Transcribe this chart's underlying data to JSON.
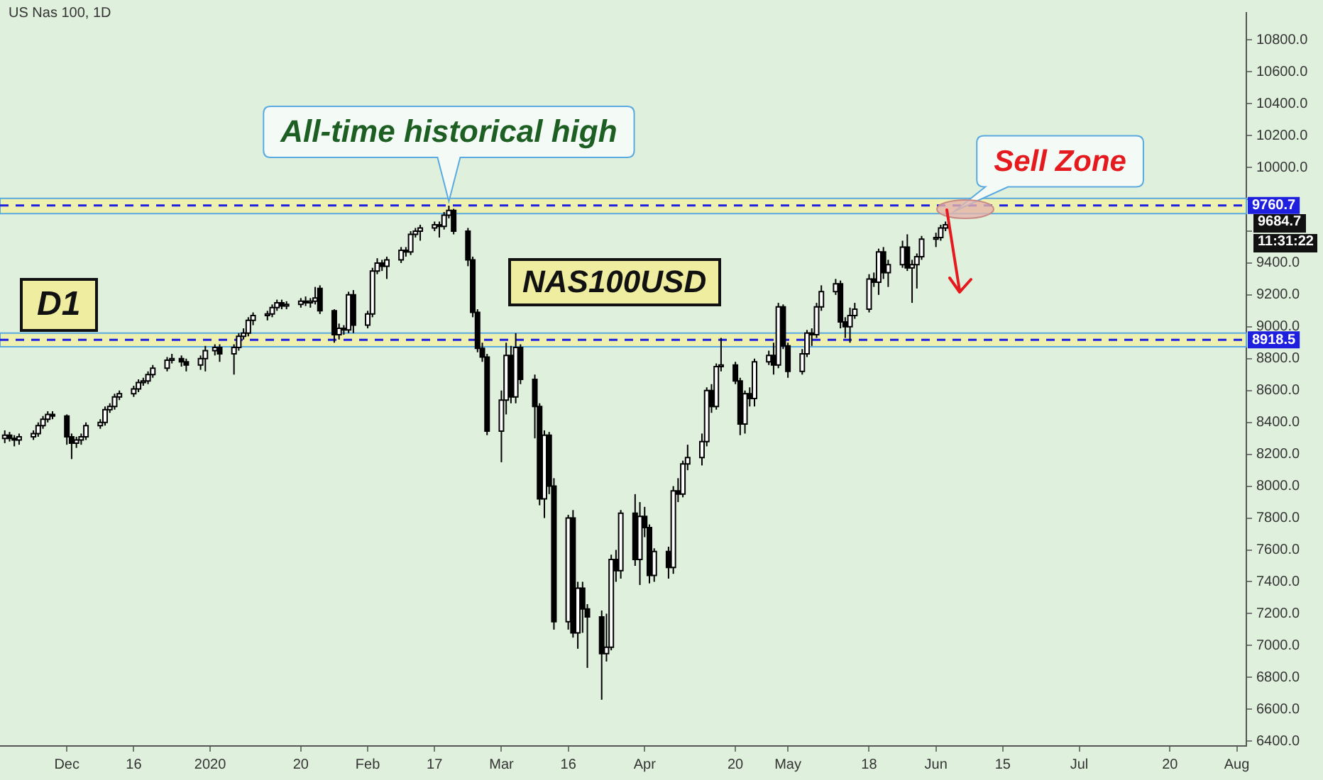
{
  "chart_data": {
    "type": "candlestick",
    "title": "US Nas 100, 1D",
    "x": [
      "2019-11-19",
      "2019-11-20",
      "2019-11-21",
      "2019-11-22",
      "2019-11-25",
      "2019-11-26",
      "2019-11-27",
      "2019-11-28",
      "2019-11-29",
      "2019-12-02",
      "2019-12-03",
      "2019-12-04",
      "2019-12-05",
      "2019-12-06",
      "2019-12-09",
      "2019-12-10",
      "2019-12-11",
      "2019-12-12",
      "2019-12-13",
      "2019-12-16",
      "2019-12-17",
      "2019-12-18",
      "2019-12-19",
      "2019-12-20",
      "2019-12-23",
      "2019-12-24",
      "2019-12-26",
      "2019-12-27",
      "2019-12-30",
      "2019-12-31",
      "2020-01-02",
      "2020-01-03",
      "2020-01-06",
      "2020-01-07",
      "2020-01-08",
      "2020-01-09",
      "2020-01-10",
      "2020-01-13",
      "2020-01-14",
      "2020-01-15",
      "2020-01-16",
      "2020-01-17",
      "2020-01-20",
      "2020-01-21",
      "2020-01-22",
      "2020-01-23",
      "2020-01-24",
      "2020-01-27",
      "2020-01-28",
      "2020-01-29",
      "2020-01-30",
      "2020-01-31",
      "2020-02-03",
      "2020-02-04",
      "2020-02-05",
      "2020-02-06",
      "2020-02-07",
      "2020-02-10",
      "2020-02-11",
      "2020-02-12",
      "2020-02-13",
      "2020-02-14",
      "2020-02-17",
      "2020-02-18",
      "2020-02-19",
      "2020-02-20",
      "2020-02-21",
      "2020-02-24",
      "2020-02-25",
      "2020-02-26",
      "2020-02-27",
      "2020-02-28",
      "2020-03-02",
      "2020-03-03",
      "2020-03-04",
      "2020-03-05",
      "2020-03-06",
      "2020-03-09",
      "2020-03-10",
      "2020-03-11",
      "2020-03-12",
      "2020-03-13",
      "2020-03-16",
      "2020-03-17",
      "2020-03-18",
      "2020-03-19",
      "2020-03-20",
      "2020-03-23",
      "2020-03-24",
      "2020-03-25",
      "2020-03-26",
      "2020-03-27",
      "2020-03-30",
      "2020-03-31",
      "2020-04-01",
      "2020-04-02",
      "2020-04-03",
      "2020-04-06",
      "2020-04-07",
      "2020-04-08",
      "2020-04-09",
      "2020-04-10",
      "2020-04-13",
      "2020-04-14",
      "2020-04-15",
      "2020-04-16",
      "2020-04-17",
      "2020-04-20",
      "2020-04-21",
      "2020-04-22",
      "2020-04-23",
      "2020-04-24",
      "2020-04-27",
      "2020-04-28",
      "2020-04-29",
      "2020-04-30",
      "2020-05-01",
      "2020-05-04",
      "2020-05-05",
      "2020-05-06",
      "2020-05-07",
      "2020-05-08",
      "2020-05-11",
      "2020-05-12",
      "2020-05-13",
      "2020-05-14",
      "2020-05-15",
      "2020-05-18",
      "2020-05-19",
      "2020-05-20",
      "2020-05-21",
      "2020-05-22",
      "2020-05-25",
      "2020-05-26",
      "2020-05-27",
      "2020-05-28",
      "2020-05-29",
      "2020-06-01",
      "2020-06-02",
      "2020-06-03"
    ],
    "ohlc": [
      [
        8300,
        8350,
        8270,
        8320
      ],
      [
        8320,
        8340,
        8280,
        8300
      ],
      [
        8300,
        8320,
        8250,
        8290
      ],
      [
        8290,
        8330,
        8260,
        8310
      ],
      [
        8310,
        8350,
        8290,
        8330
      ],
      [
        8330,
        8400,
        8310,
        8380
      ],
      [
        8380,
        8440,
        8360,
        8420
      ],
      [
        8420,
        8470,
        8400,
        8450
      ],
      [
        8450,
        8470,
        8420,
        8440
      ],
      [
        8440,
        8450,
        8260,
        8310
      ],
      [
        8310,
        8330,
        8170,
        8270
      ],
      [
        8270,
        8310,
        8240,
        8290
      ],
      [
        8290,
        8330,
        8260,
        8310
      ],
      [
        8310,
        8400,
        8290,
        8380
      ],
      [
        8380,
        8420,
        8360,
        8400
      ],
      [
        8400,
        8500,
        8380,
        8480
      ],
      [
        8480,
        8520,
        8460,
        8500
      ],
      [
        8500,
        8580,
        8480,
        8560
      ],
      [
        8560,
        8600,
        8540,
        8580
      ],
      [
        8580,
        8630,
        8560,
        8610
      ],
      [
        8610,
        8670,
        8590,
        8650
      ],
      [
        8650,
        8680,
        8630,
        8660
      ],
      [
        8660,
        8720,
        8640,
        8700
      ],
      [
        8700,
        8760,
        8680,
        8740
      ],
      [
        8740,
        8810,
        8720,
        8790
      ],
      [
        8790,
        8830,
        8770,
        8800
      ],
      [
        8800,
        8820,
        8750,
        8780
      ],
      [
        8780,
        8800,
        8720,
        8760
      ],
      [
        8760,
        8820,
        8730,
        8800
      ],
      [
        8800,
        8880,
        8720,
        8850
      ],
      [
        8850,
        8890,
        8820,
        8870
      ],
      [
        8870,
        8890,
        8780,
        8830
      ],
      [
        8830,
        8890,
        8700,
        8870
      ],
      [
        8870,
        8960,
        8850,
        8940
      ],
      [
        8940,
        8990,
        8920,
        8960
      ],
      [
        8960,
        9060,
        8940,
        9040
      ],
      [
        9040,
        9090,
        9010,
        9070
      ],
      [
        9070,
        9100,
        9040,
        9080
      ],
      [
        9080,
        9140,
        9060,
        9120
      ],
      [
        9120,
        9170,
        9100,
        9150
      ],
      [
        9150,
        9170,
        9110,
        9130
      ],
      [
        9130,
        9160,
        9110,
        9140
      ],
      [
        9140,
        9180,
        9120,
        9160
      ],
      [
        9160,
        9190,
        9130,
        9150
      ],
      [
        9150,
        9180,
        9120,
        9160
      ],
      [
        9160,
        9250,
        9140,
        9180
      ],
      [
        9240,
        9260,
        9080,
        9100
      ],
      [
        9100,
        9110,
        8900,
        8950
      ],
      [
        8950,
        9020,
        8920,
        8990
      ],
      [
        8990,
        9010,
        8950,
        8980
      ],
      [
        8980,
        9220,
        8960,
        9200
      ],
      [
        9200,
        9230,
        8960,
        9010
      ],
      [
        9010,
        9100,
        8990,
        9080
      ],
      [
        9080,
        9370,
        9060,
        9350
      ],
      [
        9350,
        9430,
        9330,
        9400
      ],
      [
        9400,
        9420,
        9350,
        9380
      ],
      [
        9380,
        9440,
        9300,
        9420
      ],
      [
        9420,
        9500,
        9400,
        9480
      ],
      [
        9480,
        9500,
        9440,
        9470
      ],
      [
        9470,
        9600,
        9450,
        9580
      ],
      [
        9580,
        9620,
        9560,
        9600
      ],
      [
        9600,
        9640,
        9540,
        9620
      ],
      [
        9620,
        9660,
        9600,
        9640
      ],
      [
        9640,
        9660,
        9560,
        9630
      ],
      [
        9630,
        9720,
        9610,
        9700
      ],
      [
        9700,
        9760,
        9680,
        9730
      ],
      [
        9730,
        9740,
        9580,
        9600
      ],
      [
        9600,
        9620,
        9380,
        9420
      ],
      [
        9420,
        9440,
        9060,
        9090
      ],
      [
        9090,
        9110,
        8840,
        8865
      ],
      [
        8865,
        8900,
        8780,
        8810
      ],
      [
        8810,
        8830,
        8320,
        8345
      ],
      [
        8345,
        8600,
        8150,
        8540
      ],
      [
        8540,
        8900,
        8450,
        8820
      ],
      [
        8820,
        8880,
        8520,
        8560
      ],
      [
        8560,
        8960,
        8520,
        8870
      ],
      [
        8870,
        8890,
        8640,
        8670
      ],
      [
        8670,
        8700,
        8300,
        8500
      ],
      [
        8500,
        8520,
        7880,
        7920
      ],
      [
        7920,
        8350,
        7800,
        8320
      ],
      [
        8320,
        8340,
        7950,
        8000
      ],
      [
        8000,
        8050,
        7100,
        7150
      ],
      [
        7150,
        7820,
        7100,
        7800
      ],
      [
        7800,
        7850,
        7050,
        7080
      ],
      [
        7080,
        7400,
        6980,
        7360
      ],
      [
        7360,
        7400,
        7080,
        7230
      ],
      [
        7230,
        7260,
        6860,
        7180
      ],
      [
        7180,
        7220,
        6660,
        6950
      ],
      [
        6950,
        7200,
        6900,
        6990
      ],
      [
        6990,
        7570,
        6970,
        7540
      ],
      [
        7540,
        7600,
        7400,
        7470
      ],
      [
        7470,
        7850,
        7420,
        7830
      ],
      [
        7830,
        7950,
        7500,
        7540
      ],
      [
        7540,
        7900,
        7380,
        7810
      ],
      [
        7810,
        7870,
        7680,
        7740
      ],
      [
        7740,
        7760,
        7390,
        7440
      ],
      [
        7440,
        7610,
        7400,
        7590
      ],
      [
        7590,
        7620,
        7420,
        7490
      ],
      [
        7490,
        8000,
        7450,
        7970
      ],
      [
        7970,
        8050,
        7900,
        7950
      ],
      [
        7950,
        8160,
        7930,
        8140
      ],
      [
        8140,
        8260,
        8100,
        8180
      ],
      [
        8180,
        8330,
        8130,
        8280
      ],
      [
        8280,
        8620,
        8250,
        8600
      ],
      [
        8600,
        8640,
        8460,
        8500
      ],
      [
        8500,
        8770,
        8480,
        8750
      ],
      [
        8750,
        8930,
        8720,
        8760
      ],
      [
        8760,
        8780,
        8640,
        8660
      ],
      [
        8660,
        8680,
        8320,
        8390
      ],
      [
        8390,
        8600,
        8330,
        8580
      ],
      [
        8580,
        8620,
        8500,
        8550
      ],
      [
        8550,
        8800,
        8500,
        8780
      ],
      [
        8780,
        8850,
        8760,
        8820
      ],
      [
        8820,
        8900,
        8700,
        8760
      ],
      [
        8760,
        9150,
        8740,
        9125
      ],
      [
        9125,
        9140,
        8860,
        8880
      ],
      [
        8880,
        8900,
        8680,
        8720
      ],
      [
        8720,
        8860,
        8700,
        8830
      ],
      [
        8830,
        8980,
        8810,
        8960
      ],
      [
        8960,
        8990,
        8880,
        8950
      ],
      [
        8950,
        9150,
        8930,
        9125
      ],
      [
        9125,
        9260,
        9100,
        9220
      ],
      [
        9220,
        9300,
        9200,
        9270
      ],
      [
        9270,
        9290,
        8990,
        9030
      ],
      [
        9030,
        9060,
        8930,
        9000
      ],
      [
        9000,
        9120,
        8900,
        9070
      ],
      [
        9070,
        9150,
        9050,
        9110
      ],
      [
        9110,
        9330,
        9090,
        9300
      ],
      [
        9300,
        9340,
        9250,
        9280
      ],
      [
        9280,
        9490,
        9200,
        9470
      ],
      [
        9470,
        9500,
        9300,
        9340
      ],
      [
        9340,
        9420,
        9250,
        9390
      ],
      [
        9390,
        9540,
        9370,
        9500
      ],
      [
        9500,
        9580,
        9350,
        9370
      ],
      [
        9370,
        9420,
        9150,
        9390
      ],
      [
        9390,
        9460,
        9240,
        9440
      ],
      [
        9440,
        9570,
        9420,
        9550
      ],
      [
        9550,
        9590,
        9500,
        9560
      ],
      [
        9560,
        9640,
        9540,
        9620
      ],
      [
        9620,
        9660,
        9600,
        9640
      ]
    ],
    "xlim": [
      "2019-11-18",
      "2020-08-05"
    ],
    "xticks": [
      {
        "value": "2019-12-02",
        "label": "Dec"
      },
      {
        "value": "2019-12-16",
        "label": "16"
      },
      {
        "value": "2020-01-01",
        "label": "2020"
      },
      {
        "value": "2020-01-20",
        "label": "20"
      },
      {
        "value": "2020-02-03",
        "label": "Feb"
      },
      {
        "value": "2020-02-17",
        "label": "17"
      },
      {
        "value": "2020-03-02",
        "label": "Mar"
      },
      {
        "value": "2020-03-16",
        "label": "16"
      },
      {
        "value": "2020-04-01",
        "label": "Apr"
      },
      {
        "value": "2020-04-20",
        "label": "20"
      },
      {
        "value": "2020-05-01",
        "label": "May"
      },
      {
        "value": "2020-05-18",
        "label": "18"
      },
      {
        "value": "2020-06-01",
        "label": "Jun"
      },
      {
        "value": "2020-06-15",
        "label": "15"
      },
      {
        "value": "2020-07-01",
        "label": "Jul"
      },
      {
        "value": "2020-07-20",
        "label": "20"
      },
      {
        "value": "2020-08-03",
        "label": "Aug"
      }
    ],
    "ylim": [
      6370,
      10970
    ],
    "yticks": [
      {
        "value": 6400,
        "label": "6400.0"
      },
      {
        "value": 6600,
        "label": "6600.0"
      },
      {
        "value": 6800,
        "label": "6800.0"
      },
      {
        "value": 7000,
        "label": "7000.0"
      },
      {
        "value": 7200,
        "label": "7200.0"
      },
      {
        "value": 7400,
        "label": "7400.0"
      },
      {
        "value": 7600,
        "label": "7600.0"
      },
      {
        "value": 7800,
        "label": "7800.0"
      },
      {
        "value": 8000,
        "label": "8000.0"
      },
      {
        "value": 8200,
        "label": "8200.0"
      },
      {
        "value": 8400,
        "label": "8400.0"
      },
      {
        "value": 8600,
        "label": "8600.0"
      },
      {
        "value": 8800,
        "label": "8800.0"
      },
      {
        "value": 9000,
        "label": "9000.0"
      },
      {
        "value": 9200,
        "label": "9200.0"
      },
      {
        "value": 9400,
        "label": "9400.0"
      },
      {
        "value": 9600,
        "label": null
      },
      {
        "value": 9800,
        "label": null
      },
      {
        "value": 10000,
        "label": "10000.0"
      },
      {
        "value": 10200,
        "label": "10200.0"
      },
      {
        "value": 10400,
        "label": "10400.0"
      },
      {
        "value": 10600,
        "label": "10600.0"
      },
      {
        "value": 10800,
        "label": "10800.0"
      }
    ],
    "ref_lines": [
      {
        "axis": "y",
        "value": 9760.7,
        "label": "9760.7",
        "color": "#1f1fe0",
        "line_style": "dashed"
      },
      {
        "axis": "y",
        "value": 8918.5,
        "label": "8918.5",
        "color": "#1f1fe0",
        "line_style": "dashed"
      }
    ],
    "bands": [
      {
        "axis": "y",
        "from": 9710,
        "to": 9805,
        "color": "#eef0b0"
      },
      {
        "axis": "y",
        "from": 8875,
        "to": 8960,
        "color": "#eef0b0"
      }
    ],
    "annotations": [
      {
        "text": "All-time historical high",
        "x": "2020-02-20",
        "y": 9760
      },
      {
        "text": "Sell Zone",
        "x": "2020-06-05",
        "y": 9700
      },
      "D1",
      "NAS100USD",
      "9684.7",
      "11:31:22"
    ],
    "grid": false,
    "legend": false
  }
}
